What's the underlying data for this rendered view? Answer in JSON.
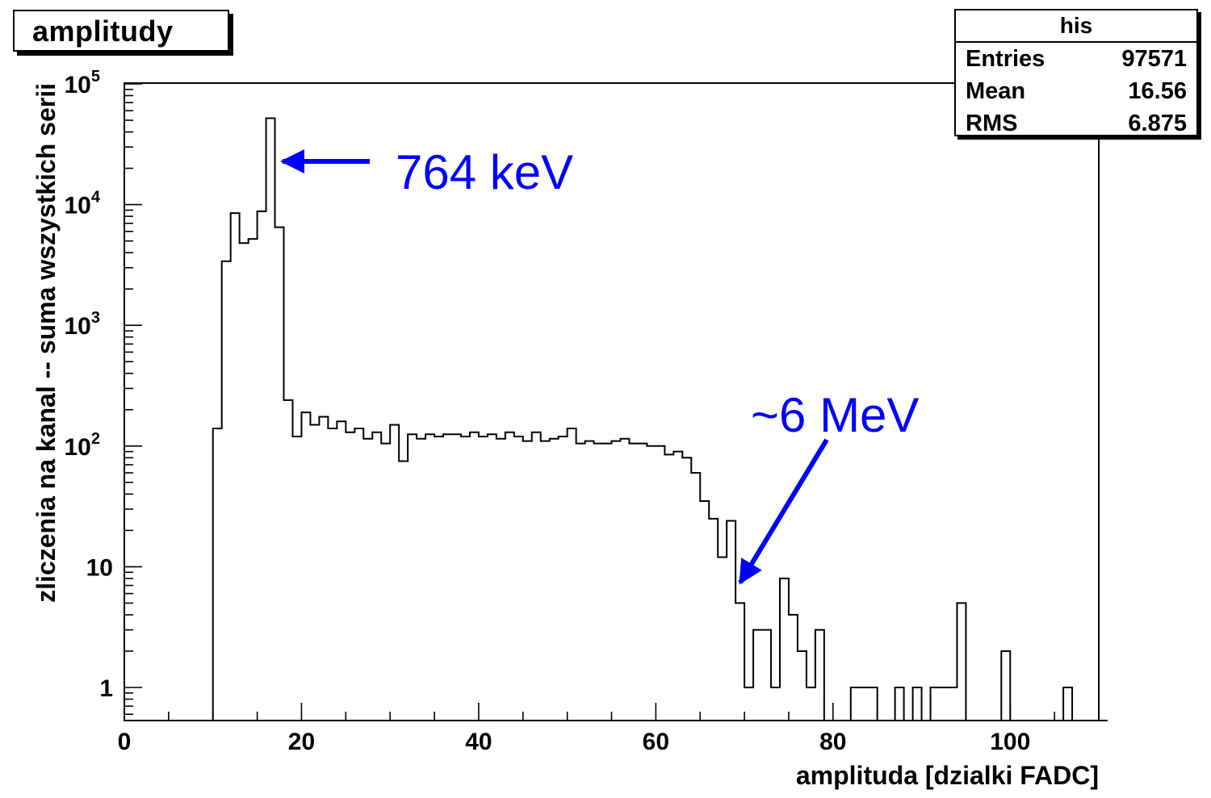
{
  "chart_data": {
    "type": "histogram",
    "title": "amplitudy",
    "xlabel": "amplitudа [dzialki FADC]",
    "ylabel": "zliczenia na kanal -- suma wszystkich serii",
    "x_range": [
      0,
      110
    ],
    "y_scale": "log",
    "ylim": [
      0.5,
      100000
    ],
    "x_ticks": [
      0,
      20,
      40,
      60,
      80,
      100
    ],
    "y_tick_labels": [
      {
        "value": 1,
        "label": "1"
      },
      {
        "value": 10,
        "label": "10"
      },
      {
        "value": 100,
        "label": "10",
        "exp": "2"
      },
      {
        "value": 1000,
        "label": "10",
        "exp": "3"
      },
      {
        "value": 10000,
        "label": "10",
        "exp": "4"
      },
      {
        "value": 100000,
        "label": "10",
        "exp": "5"
      }
    ],
    "bin_width": 1,
    "bins_start": 0,
    "values": [
      0,
      0,
      0,
      0,
      0,
      0,
      0,
      0,
      0,
      0,
      140,
      3400,
      8500,
      4800,
      5200,
      8800,
      52000,
      6500,
      240,
      120,
      190,
      150,
      175,
      140,
      160,
      130,
      140,
      115,
      130,
      105,
      150,
      75,
      125,
      115,
      125,
      120,
      125,
      125,
      120,
      130,
      120,
      125,
      115,
      130,
      120,
      110,
      130,
      110,
      115,
      120,
      140,
      105,
      110,
      105,
      105,
      110,
      115,
      105,
      105,
      100,
      100,
      85,
      90,
      80,
      60,
      35,
      25,
      12,
      24,
      5,
      1,
      3,
      3,
      1,
      8,
      4,
      2,
      1,
      3,
      0,
      0,
      0,
      1,
      1,
      1,
      0,
      0,
      1,
      0,
      1,
      0,
      1,
      1,
      1,
      5,
      0,
      0,
      0,
      0,
      2,
      0,
      0,
      0,
      0,
      0,
      0,
      1,
      0,
      0,
      0,
      0
    ],
    "stats": {
      "title": "his",
      "rows": [
        {
          "key": "Entries",
          "value": "97571"
        },
        {
          "key": "Mean",
          "value": "16.56"
        },
        {
          "key": "RMS",
          "value": "6.875"
        }
      ]
    },
    "annotations": [
      {
        "text": "764 keV",
        "color": "#0000ff"
      },
      {
        "text": "~6 MeV",
        "color": "#0000ff"
      }
    ]
  }
}
